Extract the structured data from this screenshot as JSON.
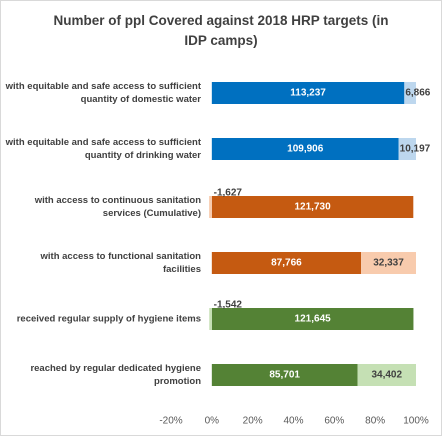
{
  "chart_data": {
    "type": "bar",
    "orientation": "horizontal",
    "stacked": "percent",
    "title": "Number of ppl Covered against 2018 HRP targets (in IDP camps)",
    "categories": [
      "with equitable and safe access to sufficient quantity of domestic water",
      "with equitable and safe access to sufficient quantity of drinking water",
      "with access to continuous sanitation services  (Cumulative)",
      "with access to functional sanitation facilities",
      "received regular supply of hygiene items",
      "reached by regular dedicated hygiene promotion"
    ],
    "segments": [
      {
        "values": [
          113237,
          109906,
          121730,
          87766,
          121645,
          85701
        ],
        "value_labels": [
          "113,237",
          "109,906",
          "121,730",
          "87,766",
          "121,645",
          "85,701"
        ],
        "colors": [
          "#0070c0",
          "#0070c0",
          "#c55a11",
          "#c55a11",
          "#548235",
          "#548235"
        ]
      },
      {
        "values": [
          6866,
          10197,
          -1627,
          32337,
          -1542,
          34402
        ],
        "value_labels": [
          "6,866",
          "10,197",
          "-1,627",
          "32,337",
          "-1,542",
          "34,402"
        ],
        "colors": [
          "#bdd7ee",
          "#bdd7ee",
          "#f8cbad",
          "#f8cbad",
          "#c5e0b4",
          "#c5e0b4"
        ]
      }
    ],
    "xlim": [
      -20,
      100
    ],
    "xticks": [
      {
        "value": -20,
        "label": "-20%"
      },
      {
        "value": 0,
        "label": "0%"
      },
      {
        "value": 20,
        "label": "20%"
      },
      {
        "value": 40,
        "label": "40%"
      },
      {
        "value": 60,
        "label": "60%"
      },
      {
        "value": 80,
        "label": "80%"
      },
      {
        "value": 100,
        "label": "100%"
      }
    ]
  }
}
